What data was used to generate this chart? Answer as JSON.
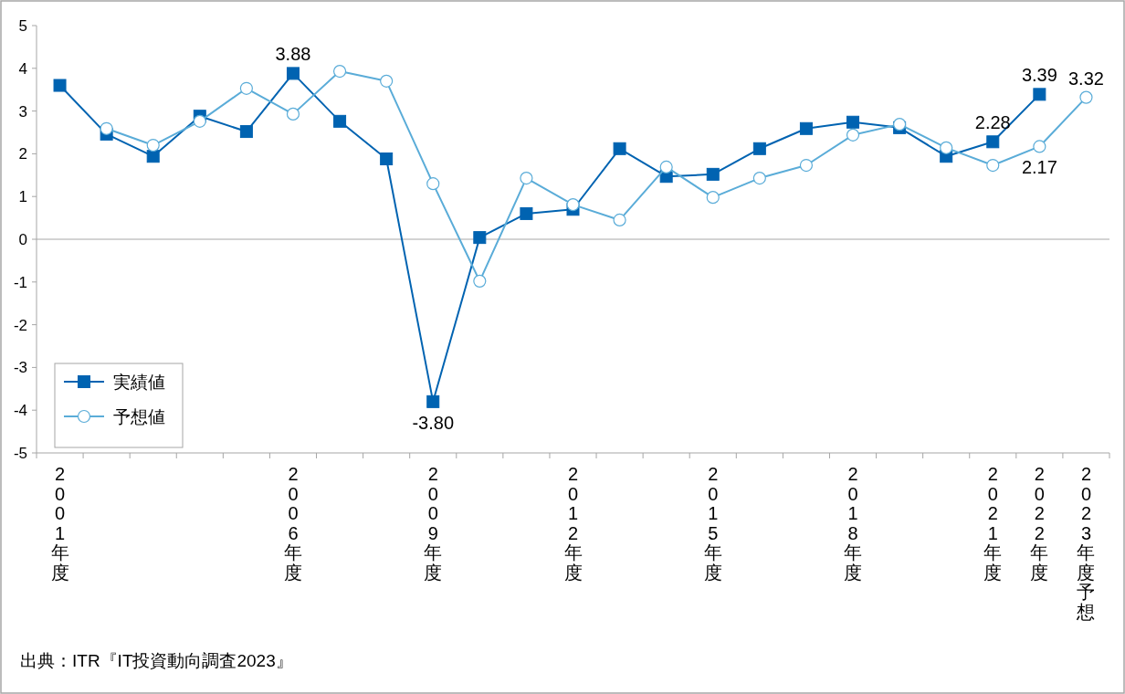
{
  "chart_data": {
    "type": "line",
    "categories": [
      "2001年度",
      null,
      null,
      null,
      null,
      "2006年度",
      null,
      null,
      "2009年度",
      null,
      null,
      "2012年度",
      null,
      null,
      "2015年度",
      null,
      null,
      "2018年度",
      null,
      null,
      "2021年度",
      "2022年度",
      "2023年度予想"
    ],
    "ylim": [
      -5,
      5
    ],
    "yticks": [
      -5,
      -4,
      -3,
      -2,
      -1,
      0,
      1,
      2,
      3,
      4,
      5
    ],
    "ref_lines": [
      {
        "axis": "y",
        "value": 0,
        "color": "#a6a6a6"
      }
    ],
    "legend": "bottom left",
    "series": [
      {
        "name": "実績値",
        "color": "#0063b1",
        "marker": "square",
        "values": [
          3.6,
          2.46,
          1.94,
          2.88,
          2.52,
          3.88,
          2.76,
          1.88,
          -3.8,
          0.04,
          0.6,
          0.7,
          2.12,
          1.47,
          1.52,
          2.12,
          2.59,
          2.74,
          2.61,
          1.94,
          2.28,
          3.39,
          null
        ],
        "value_labels": [
          null,
          null,
          null,
          null,
          null,
          "3.88",
          null,
          null,
          "-3.80",
          null,
          null,
          null,
          null,
          null,
          null,
          null,
          null,
          null,
          null,
          null,
          "2.28",
          "3.39",
          null
        ]
      },
      {
        "name": "予想値",
        "color": "#5aacd8",
        "marker": "circle",
        "values": [
          null,
          2.59,
          2.2,
          2.76,
          3.53,
          2.93,
          3.93,
          3.7,
          1.3,
          -0.98,
          1.43,
          0.81,
          0.45,
          1.69,
          0.98,
          1.43,
          1.73,
          2.44,
          2.69,
          2.14,
          1.73,
          2.17,
          3.32
        ],
        "value_labels": [
          null,
          null,
          null,
          null,
          null,
          null,
          null,
          null,
          null,
          null,
          null,
          null,
          null,
          null,
          null,
          null,
          null,
          null,
          null,
          null,
          null,
          "2.17",
          "3.32"
        ]
      }
    ],
    "annotations": [
      "出典：ITR『IT投資動向調査2023』"
    ]
  }
}
